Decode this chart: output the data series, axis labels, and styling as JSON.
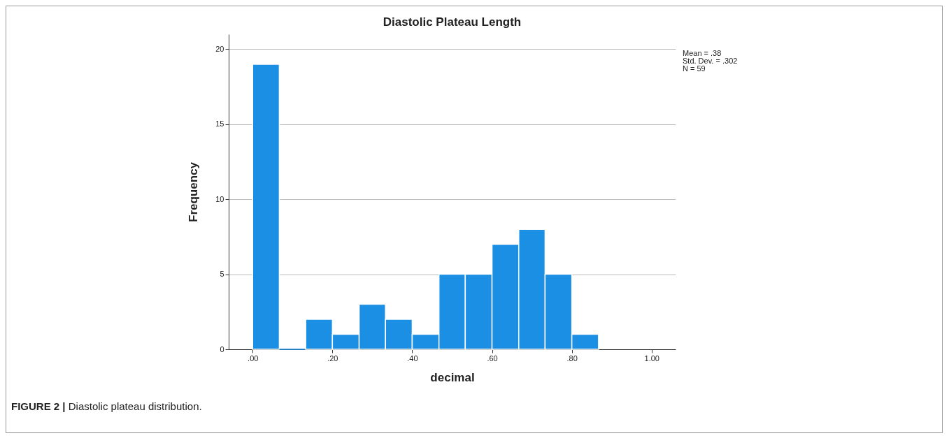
{
  "chart_data": {
    "type": "histogram",
    "title": "Diastolic Plateau Length",
    "xlabel": "decimal",
    "ylabel": "Frequency",
    "bins": [
      0,
      0.067,
      0.133,
      0.2,
      0.267,
      0.333,
      0.4,
      0.467,
      0.533,
      0.6,
      0.667,
      0.733,
      0.8,
      0.867
    ],
    "values": [
      19,
      0,
      2,
      1,
      3,
      2,
      1,
      5,
      5,
      7,
      8,
      5,
      1
    ],
    "color": "#1a8fe3",
    "xlim": [
      -0.06,
      1.06
    ],
    "xticks": [
      {
        "value": 0,
        "label": ".00"
      },
      {
        "value": 0.2,
        "label": ".20"
      },
      {
        "value": 0.4,
        "label": ".40"
      },
      {
        "value": 0.6,
        "label": ".60"
      },
      {
        "value": 0.8,
        "label": ".80"
      },
      {
        "value": 1,
        "label": "1.00"
      }
    ],
    "ylim": [
      0,
      21
    ],
    "yticks": [
      0,
      5,
      10,
      15,
      20
    ],
    "grid": "y",
    "annotations": [
      "Mean = .38",
      "Std. Dev. = .302",
      "N = 59",
      "FIGURE 2 | Diastolic plateau distribution."
    ]
  }
}
